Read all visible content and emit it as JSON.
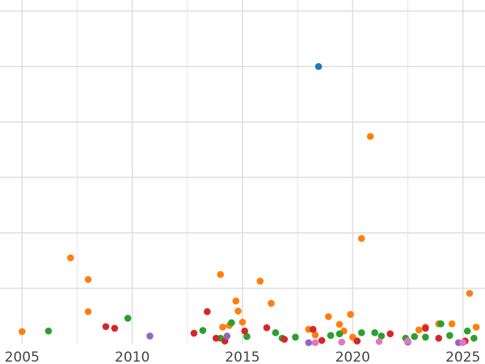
{
  "chart_data": {
    "type": "scatter",
    "title": "",
    "xlabel": "",
    "ylabel": "",
    "x_ticks": [
      "2005",
      "2010",
      "2015",
      "2020",
      "2025"
    ],
    "x_tick_values": [
      2005,
      2010,
      2015,
      2020,
      2025
    ],
    "xlim": [
      2004.0,
      2026.0
    ],
    "ylim": [
      0,
      62
    ],
    "y_gridlines": [
      10,
      20,
      30,
      40,
      50,
      60
    ],
    "grid": true,
    "legend": "none",
    "series_colors": {
      "blue": "#1f77b4",
      "orange": "#ff7f0e",
      "green": "#2ca02c",
      "red": "#d62728",
      "purple": "#9467bd",
      "pink": "#e377c2"
    },
    "series": [
      {
        "color": "#1f77b4",
        "x": [
          2018.45
        ],
        "y": [
          50.0
        ]
      },
      {
        "color": "#ff7f0e",
        "x": [
          2005.0,
          2007.2,
          2008.0,
          2008.0,
          2014.0,
          2014.1,
          2014.4,
          2014.7,
          2014.8,
          2015.0,
          2015.8,
          2016.3,
          2018.0,
          2018.3,
          2018.9,
          2019.4,
          2019.6,
          2019.9,
          2020.0,
          2020.4,
          2020.8,
          2023.0,
          2023.3,
          2023.9,
          2024.5,
          2025.3,
          2025.6
        ],
        "y": [
          2.2,
          15.5,
          11.6,
          5.8,
          12.5,
          3.0,
          3.3,
          7.7,
          5.9,
          3.9,
          11.3,
          7.3,
          2.6,
          1.6,
          4.9,
          3.5,
          2.3,
          5.3,
          1.2,
          19.0,
          37.4,
          2.5,
          3.0,
          3.6,
          3.6,
          9.1,
          3.0
        ]
      },
      {
        "color": "#2ca02c",
        "x": [
          2006.2,
          2009.8,
          2013.2,
          2014.0,
          2014.5,
          2015.2,
          2016.5,
          2016.8,
          2017.4,
          2019.0,
          2019.4,
          2020.4,
          2021.0,
          2021.3,
          2022.4,
          2022.8,
          2023.3,
          2024.0,
          2024.4,
          2025.2,
          2025.5
        ],
        "y": [
          2.3,
          4.6,
          2.4,
          1.0,
          3.8,
          1.3,
          2.0,
          1.0,
          1.2,
          1.5,
          1.8,
          2.0,
          2.0,
          1.4,
          1.0,
          1.3,
          1.2,
          3.6,
          1.5,
          2.3,
          1.0
        ]
      },
      {
        "color": "#d62728",
        "x": [
          2008.8,
          2009.2,
          2012.8,
          2013.4,
          2013.8,
          2014.2,
          2015.1,
          2016.1,
          2016.9,
          2018.2,
          2018.6,
          2020.2,
          2021.7,
          2023.3,
          2023.9,
          2025.1
        ],
        "y": [
          3.1,
          2.8,
          1.9,
          5.8,
          1.0,
          0.5,
          2.3,
          2.9,
          0.8,
          2.6,
          0.6,
          0.5,
          1.8,
          2.8,
          1.0,
          0.5
        ]
      },
      {
        "color": "#9467bd",
        "x": [
          2010.8,
          2014.3,
          2018.0,
          2022.5,
          2024.8
        ],
        "y": [
          1.4,
          1.4,
          0.2,
          0.3,
          0.2
        ]
      },
      {
        "color": "#e377c2",
        "x": [
          2018.3,
          2019.5,
          2021.2,
          2022.5,
          2025.0
        ],
        "y": [
          0.2,
          0.3,
          0.4,
          0.5,
          0.2
        ]
      }
    ]
  }
}
